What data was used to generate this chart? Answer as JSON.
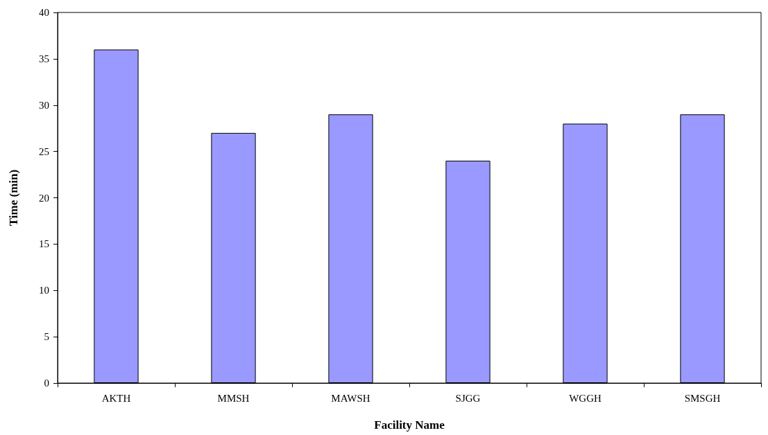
{
  "chart_data": {
    "type": "bar",
    "xlabel": "Facility Name",
    "ylabel": "Time (min)",
    "categories": [
      "AKTH",
      "MMSH",
      "MAWSH",
      "SJGG",
      "WGGH",
      "SMSGH"
    ],
    "values": [
      36,
      27,
      29,
      24,
      28,
      29
    ],
    "color": "#9999ff",
    "ylim": [
      0,
      40
    ],
    "yticks": [
      0,
      5,
      10,
      15,
      20,
      25,
      30,
      35,
      40
    ],
    "grid": false
  }
}
